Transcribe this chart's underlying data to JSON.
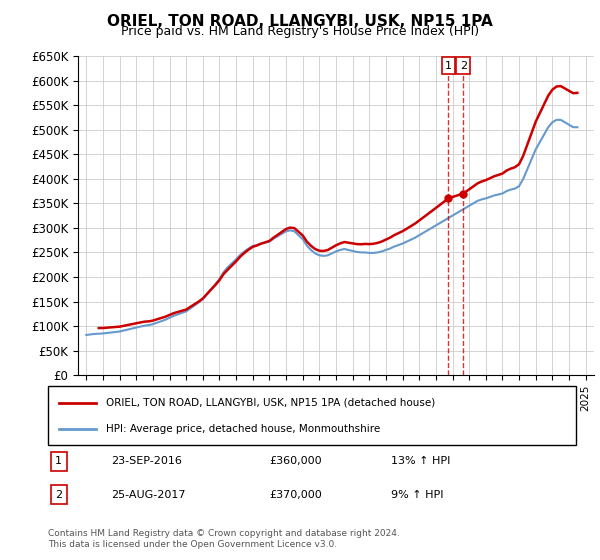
{
  "title": "ORIEL, TON ROAD, LLANGYBI, USK, NP15 1PA",
  "subtitle": "Price paid vs. HM Land Registry's House Price Index (HPI)",
  "ylabel": "",
  "ylim": [
    0,
    650000
  ],
  "yticks": [
    0,
    50000,
    100000,
    150000,
    200000,
    250000,
    300000,
    350000,
    400000,
    450000,
    500000,
    550000,
    600000,
    650000
  ],
  "ytick_labels": [
    "£0",
    "£50K",
    "£100K",
    "£150K",
    "£200K",
    "£250K",
    "£300K",
    "£350K",
    "£400K",
    "£450K",
    "£500K",
    "£550K",
    "£600K",
    "£650K"
  ],
  "xlim_start": 1994.5,
  "xlim_end": 2025.5,
  "xticks": [
    1995,
    1996,
    1997,
    1998,
    1999,
    2000,
    2001,
    2002,
    2003,
    2004,
    2005,
    2006,
    2007,
    2008,
    2009,
    2010,
    2011,
    2012,
    2013,
    2014,
    2015,
    2016,
    2017,
    2018,
    2019,
    2020,
    2021,
    2022,
    2023,
    2024,
    2025
  ],
  "line1_color": "#cc0000",
  "line2_color": "#6699cc",
  "vline_color": "#cc0000",
  "vline1_x": 2016.75,
  "vline2_x": 2017.65,
  "marker1_x": 2016.75,
  "marker1_y": 360000,
  "marker2_x": 2017.65,
  "marker2_y": 370000,
  "sale1_date": "23-SEP-2016",
  "sale1_price": "£360,000",
  "sale1_hpi": "13% ↑ HPI",
  "sale2_date": "25-AUG-2017",
  "sale2_price": "£370,000",
  "sale2_hpi": "9% ↑ HPI",
  "legend1_label": "ORIEL, TON ROAD, LLANGYBI, USK, NP15 1PA (detached house)",
  "legend2_label": "HPI: Average price, detached house, Monmouthshire",
  "footer": "Contains HM Land Registry data © Crown copyright and database right 2024.\nThis data is licensed under the Open Government Licence v3.0.",
  "hpi_years": [
    1995,
    1995.25,
    1995.5,
    1995.75,
    1996,
    1996.25,
    1996.5,
    1996.75,
    1997,
    1997.25,
    1997.5,
    1997.75,
    1998,
    1998.25,
    1998.5,
    1998.75,
    1999,
    1999.25,
    1999.5,
    1999.75,
    2000,
    2000.25,
    2000.5,
    2000.75,
    2001,
    2001.25,
    2001.5,
    2001.75,
    2002,
    2002.25,
    2002.5,
    2002.75,
    2003,
    2003.25,
    2003.5,
    2003.75,
    2004,
    2004.25,
    2004.5,
    2004.75,
    2005,
    2005.25,
    2005.5,
    2005.75,
    2006,
    2006.25,
    2006.5,
    2006.75,
    2007,
    2007.25,
    2007.5,
    2007.75,
    2008,
    2008.25,
    2008.5,
    2008.75,
    2009,
    2009.25,
    2009.5,
    2009.75,
    2010,
    2010.25,
    2010.5,
    2010.75,
    2011,
    2011.25,
    2011.5,
    2011.75,
    2012,
    2012.25,
    2012.5,
    2012.75,
    2013,
    2013.25,
    2013.5,
    2013.75,
    2014,
    2014.25,
    2014.5,
    2014.75,
    2015,
    2015.25,
    2015.5,
    2015.75,
    2016,
    2016.25,
    2016.5,
    2016.75,
    2017,
    2017.25,
    2017.5,
    2017.75,
    2018,
    2018.25,
    2018.5,
    2018.75,
    2019,
    2019.25,
    2019.5,
    2019.75,
    2020,
    2020.25,
    2020.5,
    2020.75,
    2021,
    2021.25,
    2021.5,
    2021.75,
    2022,
    2022.25,
    2022.5,
    2022.75,
    2023,
    2023.25,
    2023.5,
    2023.75,
    2024,
    2024.25,
    2024.5
  ],
  "hpi_values": [
    82000,
    83000,
    84000,
    84500,
    85000,
    86000,
    87000,
    88000,
    89000,
    91000,
    93000,
    95000,
    97000,
    99000,
    101000,
    102000,
    104000,
    107000,
    110000,
    113000,
    117000,
    121000,
    124000,
    127000,
    130000,
    136000,
    142000,
    148000,
    155000,
    165000,
    175000,
    185000,
    196000,
    210000,
    220000,
    228000,
    236000,
    245000,
    252000,
    258000,
    263000,
    265000,
    268000,
    270000,
    272000,
    278000,
    283000,
    288000,
    293000,
    295000,
    293000,
    285000,
    277000,
    264000,
    255000,
    248000,
    244000,
    243000,
    244000,
    248000,
    252000,
    255000,
    257000,
    255000,
    253000,
    251000,
    250000,
    250000,
    249000,
    249000,
    250000,
    252000,
    255000,
    258000,
    262000,
    265000,
    268000,
    272000,
    276000,
    280000,
    285000,
    290000,
    295000,
    300000,
    305000,
    310000,
    315000,
    320000,
    325000,
    330000,
    335000,
    340000,
    345000,
    350000,
    355000,
    358000,
    360000,
    363000,
    366000,
    368000,
    370000,
    375000,
    378000,
    380000,
    385000,
    400000,
    420000,
    440000,
    460000,
    475000,
    490000,
    505000,
    515000,
    520000,
    520000,
    515000,
    510000,
    505000,
    505000
  ],
  "price_paid_years": [
    1995.75,
    2003.5,
    2016.75,
    2017.65
  ],
  "price_paid_values": [
    96000,
    215000,
    360000,
    370000
  ]
}
